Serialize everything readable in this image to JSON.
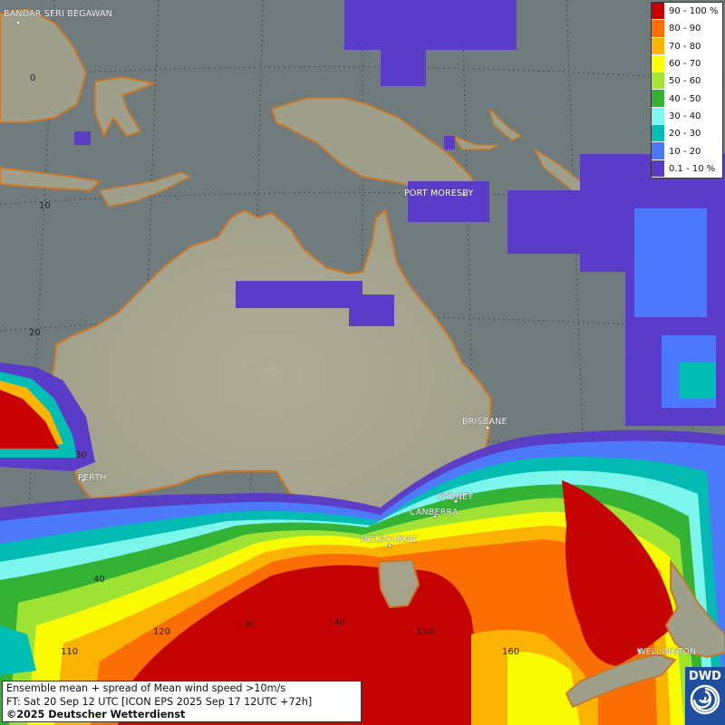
{
  "legend": {
    "items": [
      {
        "label": "90 - 100 %",
        "color": "#c80000"
      },
      {
        "label": "80 - 90",
        "color": "#ff6e00"
      },
      {
        "label": "70 - 80",
        "color": "#ffb400"
      },
      {
        "label": "60 - 70",
        "color": "#ffff00"
      },
      {
        "label": "50 - 60",
        "color": "#a0e632"
      },
      {
        "label": "40 - 50",
        "color": "#32b432"
      },
      {
        "label": "30 - 40",
        "color": "#7dfaf0"
      },
      {
        "label": "20 - 30",
        "color": "#00beb4"
      },
      {
        "label": "10 - 20",
        "color": "#4b78ff"
      },
      {
        "label": "0.1 - 10 %",
        "color": "#5a3cc8"
      }
    ]
  },
  "cities": [
    {
      "id": "bandar",
      "name": "BANDAR SERI BEGAWAN"
    },
    {
      "id": "port-moresby",
      "name": "PORT MORESBY"
    },
    {
      "id": "brisbane",
      "name": "BRISBANE"
    },
    {
      "id": "perth",
      "name": "PERTH"
    },
    {
      "id": "sydney",
      "name": "SYDNEY"
    },
    {
      "id": "canberra",
      "name": "CANBERRA"
    },
    {
      "id": "melbourne",
      "name": "MELBOURNE"
    },
    {
      "id": "wellington",
      "name": "WELLINGTON"
    }
  ],
  "grid_labels": [
    "0",
    "10",
    "20",
    "30",
    "40",
    "110",
    "120",
    "130",
    "140",
    "150",
    "160"
  ],
  "info": {
    "line1": "Ensemble mean + spread of Mean wind speed >10m/s",
    "line2": "FT: Sat 20 Sep 12 UTC [ICON EPS 2025 Sep 17 12UTC +72h]",
    "line3": "©2025 Deutscher Wetterdienst"
  },
  "logo": {
    "text": "DWD"
  },
  "colors": {
    "ocean": "#6f7b7d",
    "land": "#a8a58e",
    "coast": "#c87828"
  }
}
